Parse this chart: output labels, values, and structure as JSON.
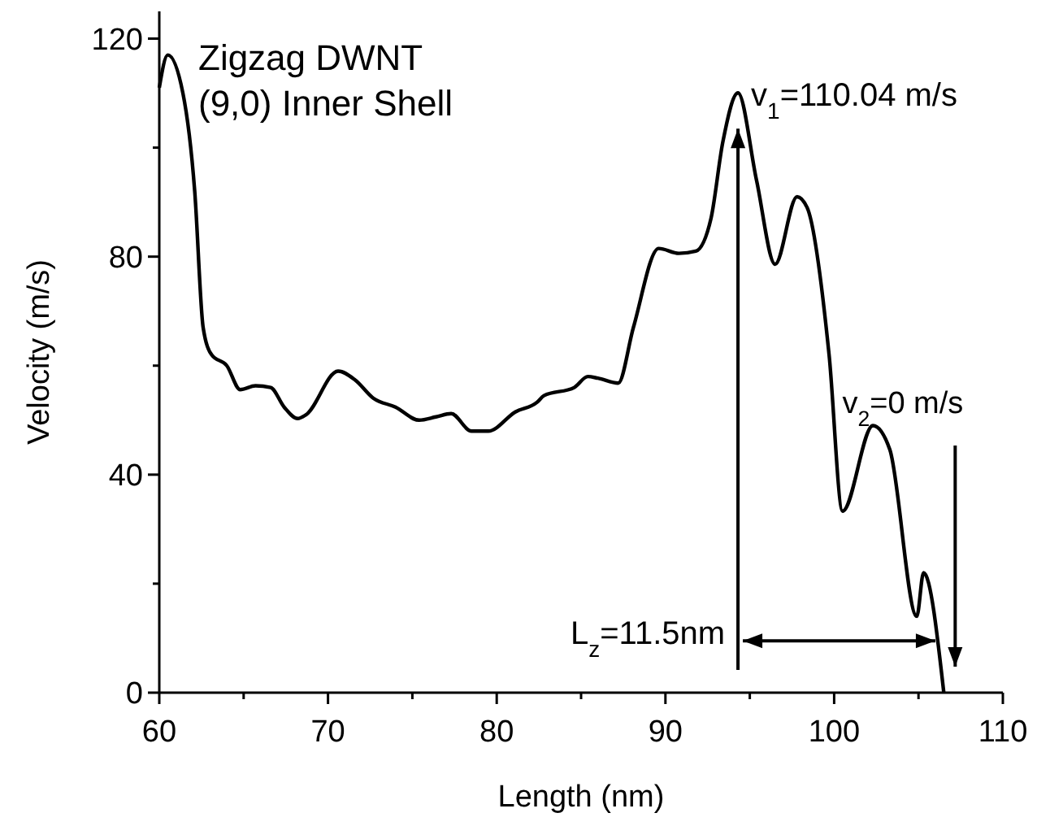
{
  "chart_data": {
    "type": "line",
    "title": "Zigzag DWNT",
    "subtitle": "(9,0) Inner Shell",
    "xlabel": "Length (nm)",
    "ylabel": "Velocity (m/s)",
    "xlim": [
      60,
      110
    ],
    "ylim": [
      0,
      125
    ],
    "xticks": [
      60,
      {
        "value": 65,
        "label": null
      },
      70,
      {
        "value": 75,
        "label": null
      },
      80,
      {
        "value": 85,
        "label": null
      },
      90,
      {
        "value": 95,
        "label": null
      },
      100,
      {
        "value": 105,
        "label": null
      },
      110
    ],
    "yticks": [
      0,
      {
        "value": 20,
        "label": null
      },
      40,
      {
        "value": 60,
        "label": null
      },
      80,
      {
        "value": 100,
        "label": null
      },
      120
    ],
    "grid": false,
    "marker": "none",
    "line_style": "solid",
    "series": [
      {
        "color": "#000000",
        "x": [
          60,
          60.5,
          61.4,
          62.1,
          62.6,
          63.1,
          64.0,
          64.8,
          65.7,
          66.6,
          67.4,
          68.2,
          68.7,
          70.6,
          71.6,
          72.7,
          74.0,
          75.4,
          76.4,
          77.3,
          78.5,
          79.5,
          81.1,
          82.4,
          82.8,
          84.6,
          85.4,
          86.0,
          87.2,
          88.1,
          89.6,
          90.8,
          91.8,
          92.7,
          93.4,
          94.3,
          95.4,
          96.5,
          97.8,
          98.4,
          99.7,
          100.5,
          102.3,
          103.3,
          104.9,
          105.3,
          106.5
        ],
        "values": [
          111,
          117,
          110,
          92,
          67,
          62,
          60,
          55.6,
          56.3,
          56,
          52.4,
          50.3,
          51,
          59,
          57.4,
          54,
          52.4,
          50,
          50.6,
          51.2,
          48,
          48,
          51.5,
          53.3,
          54.5,
          56,
          58,
          57.7,
          56.8,
          67,
          81.5,
          80.6,
          81,
          87,
          101,
          110.04,
          94,
          78.6,
          91,
          89,
          62,
          33.3,
          49,
          44.6,
          14,
          22,
          0
        ]
      }
    ],
    "annotations": [
      {
        "text": "v$_{1}$=110.04 m/s",
        "x": 94.3,
        "y": 110.04
      },
      "v$_{2}$=0 m/s",
      {
        "text": "L$_{z}$=11.5nm",
        "x": 106,
        "y": 9.5
      }
    ]
  }
}
